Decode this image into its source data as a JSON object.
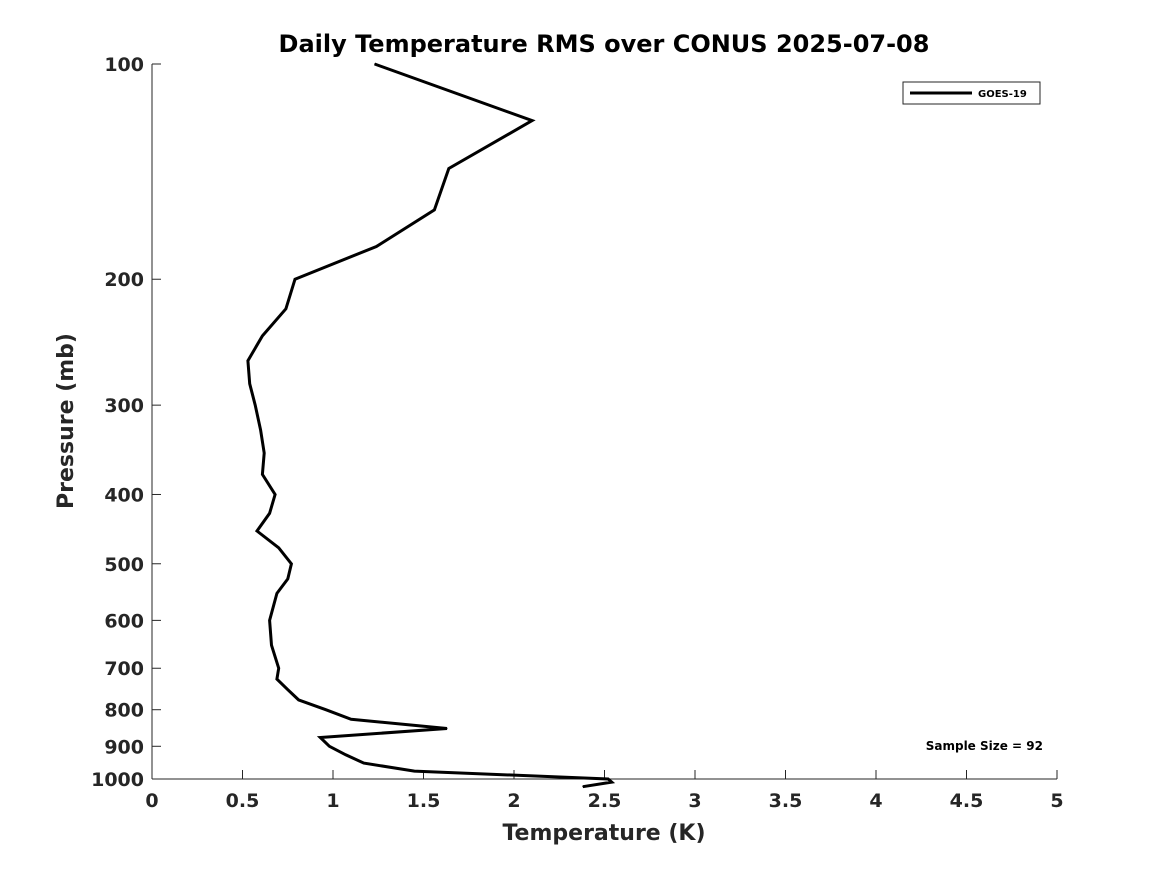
{
  "chart_data": {
    "type": "line",
    "title": "Daily Temperature RMS over CONUS 2025-07-08",
    "xlabel": "Temperature (K)",
    "ylabel": "Pressure (mb)",
    "xlim": [
      0,
      5
    ],
    "ylim": [
      100,
      1000
    ],
    "yscale": "log",
    "y_reversed": true,
    "grid": false,
    "legend_position": "top-right",
    "xticks": [
      "0",
      "0.5",
      "1",
      "1.5",
      "2",
      "2.5",
      "3",
      "3.5",
      "4",
      "4.5",
      "5"
    ],
    "yticks": [
      "100",
      "200",
      "300",
      "400",
      "500",
      "600",
      "700",
      "800",
      "900",
      "1000"
    ],
    "series": [
      {
        "name": "GOES-19",
        "color": "#000000",
        "points": [
          {
            "x": 1.23,
            "y": 100
          },
          {
            "x": 2.1,
            "y": 120
          },
          {
            "x": 1.64,
            "y": 140
          },
          {
            "x": 1.56,
            "y": 160
          },
          {
            "x": 1.24,
            "y": 180
          },
          {
            "x": 0.79,
            "y": 200
          },
          {
            "x": 0.74,
            "y": 220
          },
          {
            "x": 0.61,
            "y": 240
          },
          {
            "x": 0.53,
            "y": 260
          },
          {
            "x": 0.54,
            "y": 280
          },
          {
            "x": 0.57,
            "y": 300
          },
          {
            "x": 0.6,
            "y": 325
          },
          {
            "x": 0.62,
            "y": 350
          },
          {
            "x": 0.61,
            "y": 375
          },
          {
            "x": 0.68,
            "y": 400
          },
          {
            "x": 0.65,
            "y": 425
          },
          {
            "x": 0.58,
            "y": 450
          },
          {
            "x": 0.7,
            "y": 475
          },
          {
            "x": 0.77,
            "y": 500
          },
          {
            "x": 0.75,
            "y": 525
          },
          {
            "x": 0.69,
            "y": 550
          },
          {
            "x": 0.65,
            "y": 600
          },
          {
            "x": 0.66,
            "y": 650
          },
          {
            "x": 0.7,
            "y": 700
          },
          {
            "x": 0.69,
            "y": 725
          },
          {
            "x": 0.75,
            "y": 750
          },
          {
            "x": 0.81,
            "y": 775
          },
          {
            "x": 0.96,
            "y": 800
          },
          {
            "x": 1.1,
            "y": 825
          },
          {
            "x": 1.63,
            "y": 850
          },
          {
            "x": 0.93,
            "y": 875
          },
          {
            "x": 0.98,
            "y": 900
          },
          {
            "x": 1.07,
            "y": 925
          },
          {
            "x": 1.17,
            "y": 950
          },
          {
            "x": 1.45,
            "y": 975
          },
          {
            "x": 2.52,
            "y": 1000
          },
          {
            "x": 2.54,
            "y": 1010
          },
          {
            "x": 2.38,
            "y": 1025
          }
        ]
      }
    ],
    "annotations": [
      "Sample Size = 92"
    ]
  }
}
